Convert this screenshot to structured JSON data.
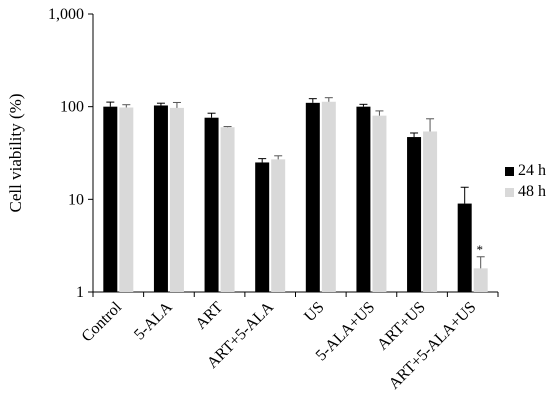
{
  "chart_data": {
    "type": "bar",
    "yscale": "log",
    "ylabel": "Cell viability (%)",
    "ylim": [
      1,
      1000
    ],
    "yticks": [
      "1",
      "10",
      "100",
      "1,000"
    ],
    "categories": [
      "Control",
      "5-ALA",
      "ART",
      "ART+5-ALA",
      "US",
      "5-ALA+US",
      "ART+US",
      "ART+5-ALA+US"
    ],
    "series": [
      {
        "name": "24 h",
        "color": "#000000",
        "values": [
          100,
          103,
          76,
          25,
          110,
          100,
          47,
          9
        ],
        "errors": [
          12,
          6,
          9,
          2.5,
          12,
          6,
          5,
          4.5
        ]
      },
      {
        "name": "48 h",
        "color": "#d9d9d9",
        "values": [
          98,
          97,
          60,
          27,
          113,
          80,
          54,
          1.8
        ],
        "errors": [
          7,
          14,
          1,
          2.5,
          12,
          10,
          20,
          0.6
        ]
      }
    ],
    "annotations": [
      {
        "category": "ART+5-ALA+US",
        "series": "48 h",
        "text": "*"
      }
    ],
    "legend": "right"
  }
}
